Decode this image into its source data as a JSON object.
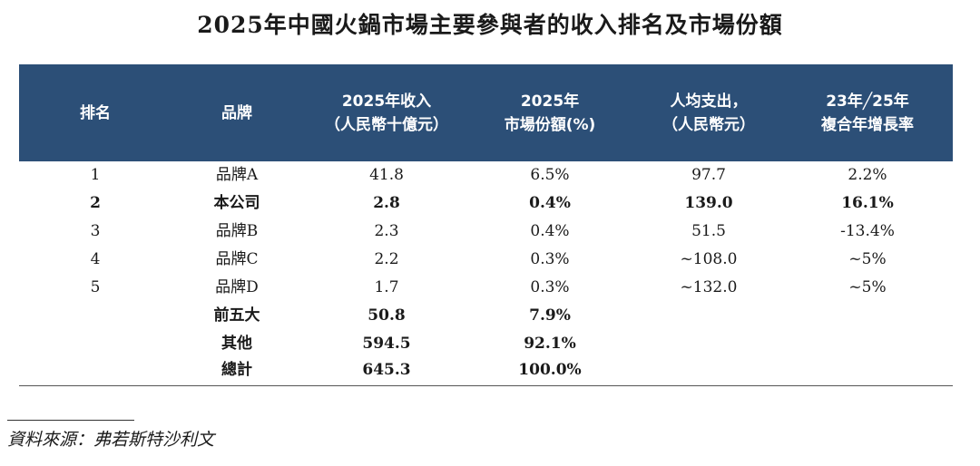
{
  "title": "2025年中國火鍋市場主要參與者的收入排名及市場份額",
  "headers": [
    {
      "line1": "排名",
      "line2": ""
    },
    {
      "line1": "品牌",
      "line2": ""
    },
    {
      "line1": "2025年收入",
      "line2": "（人民幣十億元）"
    },
    {
      "line1": "2025年",
      "line2": "市場份額(%)"
    },
    {
      "line1": "人均支出，",
      "line2": "（人民幣元）"
    },
    {
      "line1": "23年╱25年",
      "line2": "複合年增長率"
    }
  ],
  "rows": [
    {
      "rank": "1",
      "brand": "品牌A",
      "revenue": "41.8",
      "share": "6.5%",
      "spend": "97.7",
      "cagr": "2.2%"
    },
    {
      "rank": "2",
      "brand": "本公司",
      "revenue": "2.8",
      "share": "0.4%",
      "spend": "139.0",
      "cagr": "16.1%"
    },
    {
      "rank": "3",
      "brand": "品牌B",
      "revenue": "2.3",
      "share": "0.4%",
      "spend": "51.5",
      "cagr": "-13.4%"
    },
    {
      "rank": "4",
      "brand": "品牌C",
      "revenue": "2.2",
      "share": "0.3%",
      "spend": "~108.0",
      "cagr": "~5%"
    },
    {
      "rank": "5",
      "brand": "品牌D",
      "revenue": "1.7",
      "share": "0.3%",
      "spend": "~132.0",
      "cagr": "~5%"
    },
    {
      "rank": "",
      "brand": "前五大",
      "revenue": "50.8",
      "share": "7.9%",
      "spend": "",
      "cagr": ""
    },
    {
      "rank": "",
      "brand": "其他",
      "revenue": "594.5",
      "share": "92.1%",
      "spend": "",
      "cagr": ""
    },
    {
      "rank": "",
      "brand": "總計",
      "revenue": "645.3",
      "share": "100.0%",
      "spend": "",
      "cagr": ""
    }
  ],
  "source": "資料來源：弗若斯特沙利文",
  "colors": {
    "header_bg": "#2c4f77",
    "header_text": "#ffffff"
  }
}
